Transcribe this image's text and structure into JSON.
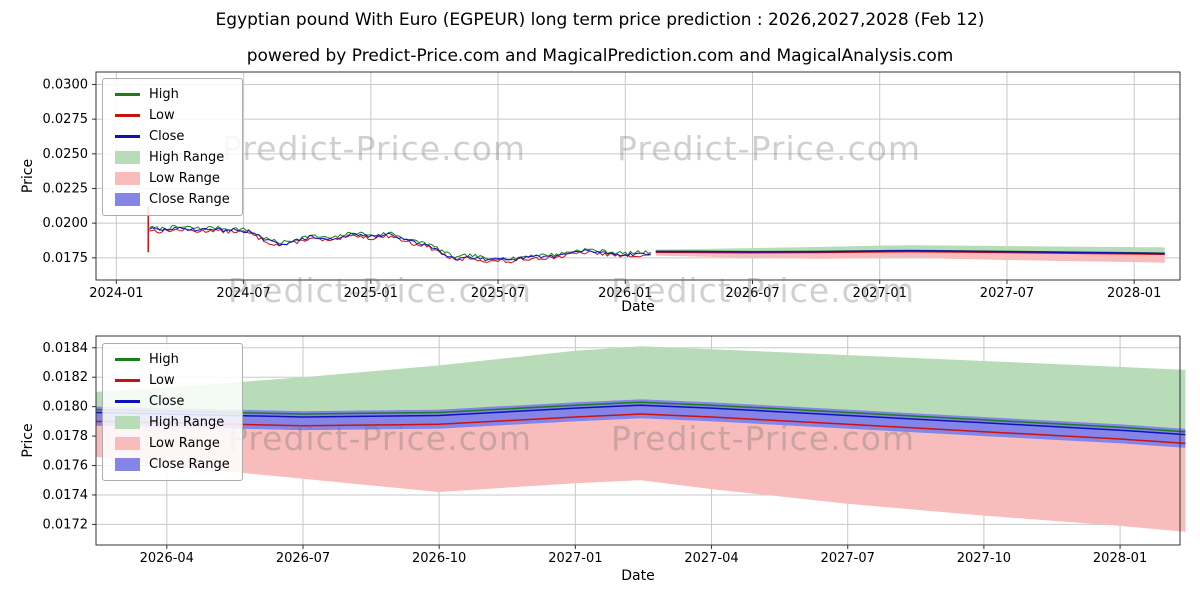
{
  "page": {
    "title": "Egyptian pound With Euro (EGPEUR) long term price prediction : 2026,2027,2028 (Feb 12)",
    "subtitle": "powered by Predict-Price.com and MagicalPrediction.com and MagicalAnalysis.com",
    "watermark": "Predict-Price.com"
  },
  "colors": {
    "high": "#1a7f1a",
    "low": "#cc1111",
    "close": "#1111bb",
    "high_range": "#b7dcb7",
    "low_range": "#f9bcbc",
    "close_range": "#8585e8",
    "grid": "#c8c8c8",
    "axis": "#333333"
  },
  "legend": [
    {
      "label": "High",
      "type": "line",
      "color": "high"
    },
    {
      "label": "Low",
      "type": "line",
      "color": "low"
    },
    {
      "label": "Close",
      "type": "line",
      "color": "close"
    },
    {
      "label": "High Range",
      "type": "patch",
      "color": "high_range"
    },
    {
      "label": "Low Range",
      "type": "patch",
      "color": "low_range"
    },
    {
      "label": "Close Range",
      "type": "patch",
      "color": "close_range"
    }
  ],
  "chart_data": [
    {
      "type": "line",
      "title": "EGPEUR price history and long term prediction",
      "xlabel": "Date",
      "ylabel": "Price",
      "grid": true,
      "legend_position": "upper left",
      "xlim": [
        2023.92,
        2028.18
      ],
      "ylim": [
        0.0159,
        0.0309
      ],
      "xticks": [
        {
          "v": 2024.0,
          "label": "2024-01"
        },
        {
          "v": 2024.5,
          "label": "2024-07"
        },
        {
          "v": 2025.0,
          "label": "2025-01"
        },
        {
          "v": 2025.5,
          "label": "2025-07"
        },
        {
          "v": 2026.0,
          "label": "2026-01"
        },
        {
          "v": 2026.5,
          "label": "2026-07"
        },
        {
          "v": 2027.0,
          "label": "2027-01"
        },
        {
          "v": 2027.5,
          "label": "2027-07"
        },
        {
          "v": 2028.0,
          "label": "2028-01"
        }
      ],
      "yticks": [
        {
          "v": 0.0175,
          "label": "0.0175"
        },
        {
          "v": 0.02,
          "label": "0.0200"
        },
        {
          "v": 0.0225,
          "label": "0.0225"
        },
        {
          "v": 0.025,
          "label": "0.0250"
        },
        {
          "v": 0.0275,
          "label": "0.0275"
        },
        {
          "v": 0.03,
          "label": "0.0300"
        }
      ],
      "historical": {
        "x": [
          2024.13,
          2024.17,
          2024.22,
          2024.28,
          2024.33,
          2024.38,
          2024.42,
          2024.47,
          2024.52,
          2024.55,
          2024.6,
          2024.64,
          2024.68,
          2024.72,
          2024.76,
          2024.8,
          2024.85,
          2024.9,
          2024.95,
          2025.0,
          2025.04,
          2025.08,
          2025.12,
          2025.17,
          2025.21,
          2025.26,
          2025.3,
          2025.34,
          2025.38,
          2025.42,
          2025.46,
          2025.5,
          2025.55,
          2025.6,
          2025.65,
          2025.7,
          2025.75,
          2025.8,
          2025.85,
          2025.9,
          2025.95,
          2026.0,
          2026.05,
          2026.1
        ],
        "close": [
          0.0196,
          0.0195,
          0.0196,
          0.0196,
          0.0195,
          0.0196,
          0.0195,
          0.0195,
          0.0194,
          0.0191,
          0.0187,
          0.0185,
          0.0186,
          0.0188,
          0.019,
          0.0189,
          0.0188,
          0.0191,
          0.0192,
          0.019,
          0.0191,
          0.0192,
          0.0189,
          0.0186,
          0.0185,
          0.0181,
          0.0177,
          0.0174,
          0.0176,
          0.0175,
          0.0173,
          0.0174,
          0.0173,
          0.0175,
          0.0176,
          0.0176,
          0.0177,
          0.0179,
          0.018,
          0.0179,
          0.0178,
          0.0177,
          0.0178,
          0.0178
        ],
        "high_offset": 0.0001,
        "low_offset": 0.0001,
        "spike": {
          "x": 2024.125,
          "high": 0.0212,
          "low": 0.0179
        }
      },
      "forecast": {
        "x": [
          2026.12,
          2026.25,
          2026.5,
          2026.75,
          2027.0,
          2027.12,
          2027.25,
          2027.5,
          2027.75,
          2028.0,
          2028.12
        ],
        "high_range_top": [
          0.0181,
          0.01813,
          0.0182,
          0.01828,
          0.01838,
          0.01841,
          0.01839,
          0.01835,
          0.01831,
          0.01827,
          0.01825
        ],
        "close_range_top": [
          0.018,
          0.01799,
          0.01797,
          0.01798,
          0.01803,
          0.01805,
          0.01803,
          0.01798,
          0.01793,
          0.01788,
          0.01785
        ],
        "high_line": [
          0.01798,
          0.01797,
          0.01795,
          0.01796,
          0.01801,
          0.01803,
          0.01801,
          0.01796,
          0.01791,
          0.01786,
          0.01783
        ],
        "close": [
          0.01796,
          0.01795,
          0.01793,
          0.01794,
          0.01799,
          0.01801,
          0.01799,
          0.01794,
          0.01789,
          0.01784,
          0.01781
        ],
        "low_line": [
          0.0179,
          0.01789,
          0.01787,
          0.01788,
          0.01793,
          0.01795,
          0.01793,
          0.01788,
          0.01783,
          0.01778,
          0.01775
        ],
        "close_range_bottom": [
          0.01787,
          0.01786,
          0.01784,
          0.01785,
          0.0179,
          0.01792,
          0.0179,
          0.01785,
          0.0178,
          0.01775,
          0.01772
        ],
        "low_range_bottom": [
          0.01766,
          0.0176,
          0.01751,
          0.01742,
          0.01748,
          0.0175,
          0.01744,
          0.01734,
          0.01726,
          0.01719,
          0.01715
        ]
      }
    },
    {
      "type": "line",
      "title": "EGPEUR prediction detail 2026-2028",
      "xlabel": "Date",
      "ylabel": "Price",
      "grid": true,
      "legend_position": "upper left",
      "xlim": [
        2026.12,
        2028.11
      ],
      "ylim": [
        0.01706,
        0.01848
      ],
      "xticks": [
        {
          "v": 2026.25,
          "label": "2026-04"
        },
        {
          "v": 2026.5,
          "label": "2026-07"
        },
        {
          "v": 2026.75,
          "label": "2026-10"
        },
        {
          "v": 2027.0,
          "label": "2027-01"
        },
        {
          "v": 2027.25,
          "label": "2027-04"
        },
        {
          "v": 2027.5,
          "label": "2027-07"
        },
        {
          "v": 2027.75,
          "label": "2027-10"
        },
        {
          "v": 2028.0,
          "label": "2028-01"
        }
      ],
      "yticks": [
        {
          "v": 0.0172,
          "label": "0.0172"
        },
        {
          "v": 0.0174,
          "label": "0.0174"
        },
        {
          "v": 0.0176,
          "label": "0.0176"
        },
        {
          "v": 0.0178,
          "label": "0.0178"
        },
        {
          "v": 0.018,
          "label": "0.0180"
        },
        {
          "v": 0.0182,
          "label": "0.0182"
        },
        {
          "v": 0.0184,
          "label": "0.0184"
        }
      ],
      "forecast": {
        "x": [
          2026.12,
          2026.25,
          2026.5,
          2026.75,
          2027.0,
          2027.12,
          2027.25,
          2027.5,
          2027.75,
          2028.0,
          2028.12
        ],
        "high_range_top": [
          0.0181,
          0.01813,
          0.0182,
          0.01828,
          0.01838,
          0.01841,
          0.01839,
          0.01835,
          0.01831,
          0.01827,
          0.01825
        ],
        "close_range_top": [
          0.018,
          0.01799,
          0.01797,
          0.01798,
          0.01803,
          0.01805,
          0.01803,
          0.01798,
          0.01793,
          0.01788,
          0.01785
        ],
        "high_line": [
          0.01798,
          0.01797,
          0.01795,
          0.01796,
          0.01801,
          0.01803,
          0.01801,
          0.01796,
          0.01791,
          0.01786,
          0.01783
        ],
        "close": [
          0.01796,
          0.01795,
          0.01793,
          0.01794,
          0.01799,
          0.01801,
          0.01799,
          0.01794,
          0.01789,
          0.01784,
          0.01781
        ],
        "low_line": [
          0.0179,
          0.01789,
          0.01787,
          0.01788,
          0.01793,
          0.01795,
          0.01793,
          0.01788,
          0.01783,
          0.01778,
          0.01775
        ],
        "close_range_bottom": [
          0.01787,
          0.01786,
          0.01784,
          0.01785,
          0.0179,
          0.01792,
          0.0179,
          0.01785,
          0.0178,
          0.01775,
          0.01772
        ],
        "low_range_bottom": [
          0.01766,
          0.0176,
          0.01751,
          0.01742,
          0.01748,
          0.0175,
          0.01744,
          0.01734,
          0.01726,
          0.01719,
          0.01715
        ]
      }
    }
  ]
}
